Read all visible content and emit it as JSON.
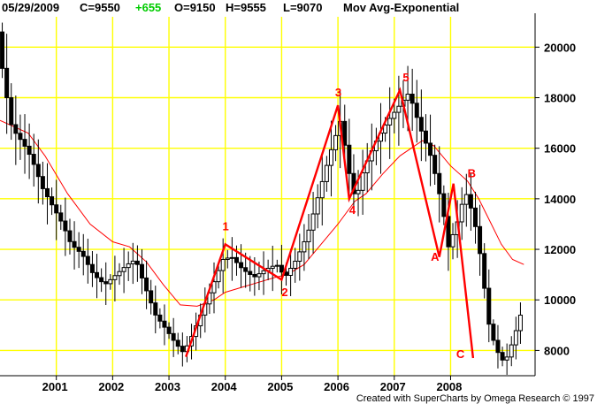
{
  "header": {
    "date": "05/29/2009",
    "close": "C=9550",
    "change": "+655",
    "open": "O=9150",
    "high": "H=9555",
    "low": "L=9070",
    "indicator": "Mov Avg-Exponential"
  },
  "footer": {
    "credit": "Created with SuperCharts by Omega Research © 1997"
  },
  "colors": {
    "grid": "#ffff00",
    "price": "#000000",
    "ma": "#ff0000",
    "wave": "#ff0000",
    "change": "#00cc00"
  },
  "chart_data": {
    "type": "candlestick",
    "y_range": [
      7000,
      21200
    ],
    "x_range": [
      2000.0,
      2009.5
    ],
    "yticks": [
      8000,
      10000,
      12000,
      14000,
      16000,
      18000,
      20000
    ],
    "ytick_labels": [
      "8000",
      "10000",
      "12000",
      "14000",
      "16000",
      "18000",
      "20000"
    ],
    "xticks": [
      2001,
      2002,
      2003,
      2004,
      2005,
      2006,
      2007,
      2008
    ],
    "xtick_labels": [
      "2001",
      "2002",
      "2003",
      "2004",
      "2005",
      "2006",
      "2007",
      "2008"
    ],
    "grid": true,
    "price_path": [
      [
        2000.0,
        20600
      ],
      [
        2000.1,
        18800
      ],
      [
        2000.25,
        16800
      ],
      [
        2000.45,
        16200
      ],
      [
        2000.6,
        15600
      ],
      [
        2000.8,
        14400
      ],
      [
        2001.0,
        13600
      ],
      [
        2001.15,
        13000
      ],
      [
        2001.3,
        12200
      ],
      [
        2001.5,
        11800
      ],
      [
        2001.7,
        11000
      ],
      [
        2001.9,
        10600
      ],
      [
        2002.1,
        11000
      ],
      [
        2002.3,
        11400
      ],
      [
        2002.45,
        11600
      ],
      [
        2002.6,
        10600
      ],
      [
        2002.8,
        9400
      ],
      [
        2003.0,
        8800
      ],
      [
        2003.15,
        8300
      ],
      [
        2003.3,
        7900
      ],
      [
        2003.45,
        8600
      ],
      [
        2003.6,
        9400
      ],
      [
        2003.8,
        10500
      ],
      [
        2004.0,
        11600
      ],
      [
        2004.15,
        11700
      ],
      [
        2004.35,
        11200
      ],
      [
        2004.55,
        10900
      ],
      [
        2004.75,
        11200
      ],
      [
        2004.95,
        11400
      ],
      [
        2005.1,
        10900
      ],
      [
        2005.3,
        11600
      ],
      [
        2005.5,
        12600
      ],
      [
        2005.7,
        14200
      ],
      [
        2005.9,
        15800
      ],
      [
        2006.1,
        17200
      ],
      [
        2006.2,
        15400
      ],
      [
        2006.35,
        13900
      ],
      [
        2006.5,
        15200
      ],
      [
        2006.7,
        16200
      ],
      [
        2006.9,
        17000
      ],
      [
        2007.1,
        17600
      ],
      [
        2007.3,
        18200
      ],
      [
        2007.5,
        16800
      ],
      [
        2007.7,
        15600
      ],
      [
        2007.9,
        13600
      ],
      [
        2008.0,
        12100
      ],
      [
        2008.15,
        13000
      ],
      [
        2008.3,
        14300
      ],
      [
        2008.45,
        13300
      ],
      [
        2008.6,
        11300
      ],
      [
        2008.7,
        9200
      ],
      [
        2008.8,
        8400
      ],
      [
        2008.9,
        7800
      ],
      [
        2009.0,
        7500
      ],
      [
        2009.15,
        8400
      ],
      [
        2009.3,
        9550
      ]
    ],
    "moving_average": [
      [
        2000.0,
        17100
      ],
      [
        2000.5,
        16600
      ],
      [
        2000.8,
        15700
      ],
      [
        2001.2,
        14200
      ],
      [
        2001.6,
        13000
      ],
      [
        2002.0,
        12300
      ],
      [
        2002.3,
        12100
      ],
      [
        2002.6,
        11500
      ],
      [
        2002.9,
        10600
      ],
      [
        2003.2,
        9800
      ],
      [
        2003.5,
        9750
      ],
      [
        2003.8,
        10000
      ],
      [
        2004.0,
        10300
      ],
      [
        2004.3,
        10500
      ],
      [
        2004.6,
        10700
      ],
      [
        2004.9,
        10900
      ],
      [
        2005.1,
        11000
      ],
      [
        2005.4,
        11400
      ],
      [
        2005.7,
        12200
      ],
      [
        2006.0,
        13000
      ],
      [
        2006.3,
        13900
      ],
      [
        2006.5,
        14200
      ],
      [
        2006.8,
        15000
      ],
      [
        2007.1,
        15700
      ],
      [
        2007.3,
        16000
      ],
      [
        2007.5,
        16300
      ],
      [
        2007.7,
        16100
      ],
      [
        2008.0,
        15300
      ],
      [
        2008.3,
        14700
      ],
      [
        2008.5,
        14000
      ],
      [
        2008.7,
        13100
      ],
      [
        2008.9,
        12200
      ],
      [
        2009.1,
        11600
      ],
      [
        2009.3,
        11400
      ]
    ],
    "waves": [
      [
        2003.3,
        7750
      ],
      [
        2004.0,
        12200
      ],
      [
        2005.0,
        10800
      ],
      [
        2006.0,
        17700
      ],
      [
        2006.2,
        14000
      ],
      [
        2007.1,
        18300
      ],
      [
        2007.8,
        11700
      ],
      [
        2008.05,
        14600
      ],
      [
        2008.4,
        7700
      ]
    ],
    "wave_labels": [
      {
        "text": "1",
        "x": 2003.95,
        "y": 12750
      },
      {
        "text": "2",
        "x": 2005.0,
        "y": 10150
      },
      {
        "text": "3",
        "x": 2005.95,
        "y": 18050
      },
      {
        "text": "4",
        "x": 2006.2,
        "y": 13400
      },
      {
        "text": "5",
        "x": 2007.15,
        "y": 18650
      },
      {
        "text": "A",
        "x": 2007.65,
        "y": 11550
      },
      {
        "text": "B",
        "x": 2008.3,
        "y": 14850
      },
      {
        "text": "C",
        "x": 2008.1,
        "y": 7700
      }
    ]
  }
}
